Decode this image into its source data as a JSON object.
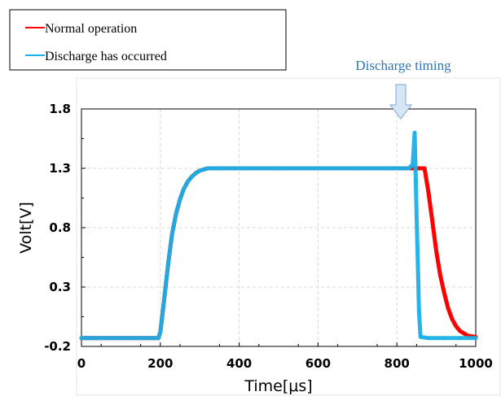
{
  "chart_data": {
    "type": "line",
    "title": "",
    "xlabel": "Time[μs]",
    "ylabel": "Volt[V]",
    "xlim": [
      0,
      1000
    ],
    "ylim": [
      -0.2,
      1.8
    ],
    "xticks": [
      "0",
      "200",
      "400",
      "600",
      "800",
      "1000"
    ],
    "yticks": [
      "-0.2",
      "0.3",
      "0.8",
      "1.3",
      "1.8"
    ],
    "grid": true,
    "legend_position": "top-left",
    "annotation": {
      "text": "Discharge timing",
      "x": 820,
      "color": "#2e75b6",
      "arrow_color": "#9dc3e6"
    },
    "series": [
      {
        "name": "Normal operation",
        "color": "#ff0000",
        "x": [
          0,
          195,
          200,
          210,
          220,
          230,
          240,
          250,
          260,
          270,
          280,
          290,
          300,
          320,
          350,
          400,
          500,
          600,
          700,
          800,
          840,
          860,
          870,
          880,
          890,
          900,
          910,
          920,
          930,
          940,
          950,
          960,
          980,
          1000
        ],
        "y": [
          -0.13,
          -0.13,
          -0.08,
          0.2,
          0.5,
          0.75,
          0.92,
          1.04,
          1.13,
          1.19,
          1.23,
          1.26,
          1.28,
          1.3,
          1.3,
          1.3,
          1.3,
          1.3,
          1.3,
          1.3,
          1.3,
          1.3,
          1.3,
          1.1,
          0.85,
          0.6,
          0.4,
          0.25,
          0.12,
          0.03,
          -0.03,
          -0.07,
          -0.11,
          -0.12
        ]
      },
      {
        "name": "Discharge has occurred",
        "color": "#1ab0e8",
        "x": [
          0,
          195,
          200,
          210,
          220,
          230,
          240,
          250,
          260,
          270,
          280,
          290,
          300,
          320,
          350,
          400,
          500,
          600,
          700,
          800,
          830,
          840,
          845,
          848,
          850,
          853,
          856,
          860,
          880,
          920,
          960,
          1000
        ],
        "y": [
          -0.13,
          -0.13,
          -0.08,
          0.2,
          0.5,
          0.75,
          0.92,
          1.04,
          1.13,
          1.19,
          1.23,
          1.26,
          1.28,
          1.3,
          1.3,
          1.3,
          1.3,
          1.3,
          1.3,
          1.3,
          1.3,
          1.33,
          1.6,
          1.2,
          0.9,
          0.5,
          0.1,
          -0.12,
          -0.13,
          -0.13,
          -0.13,
          -0.13
        ]
      }
    ]
  }
}
